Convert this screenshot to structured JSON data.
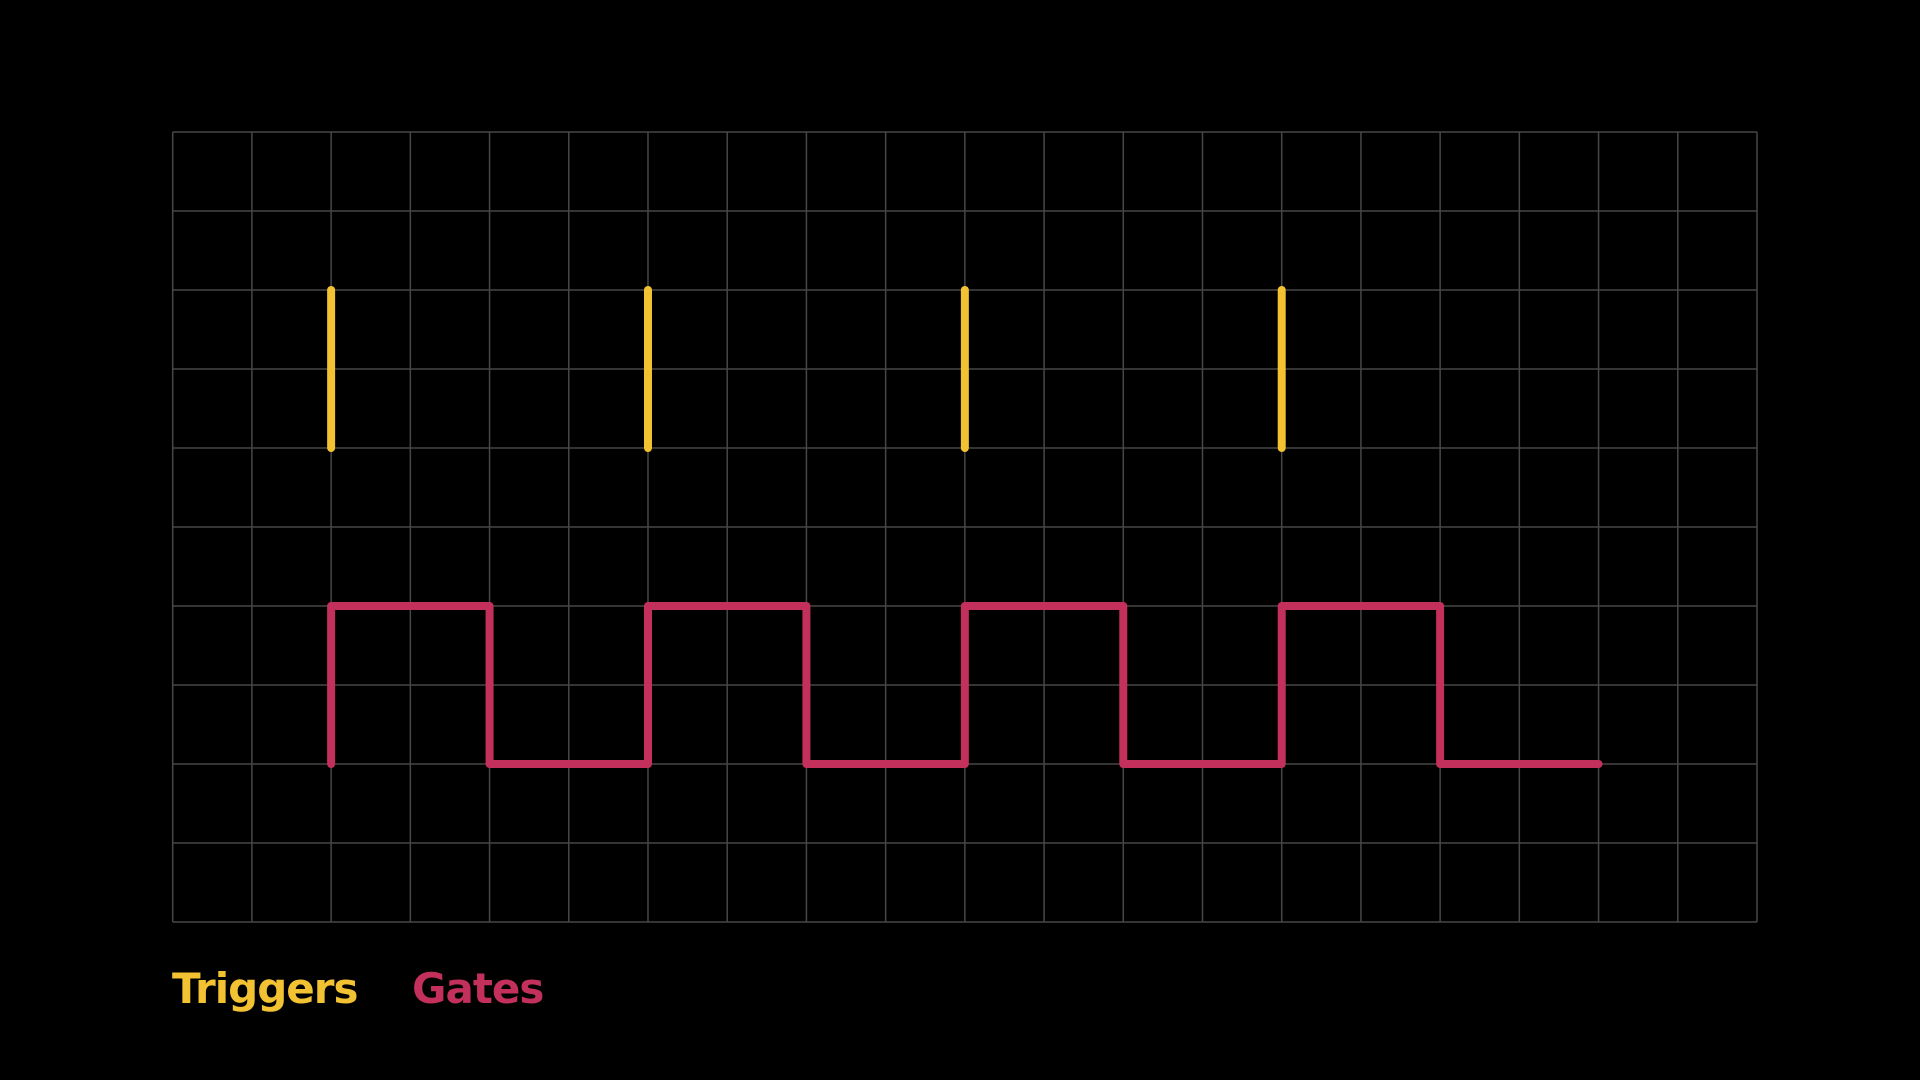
{
  "legend": {
    "triggers": "Triggers",
    "gates": "Gates"
  }
}
